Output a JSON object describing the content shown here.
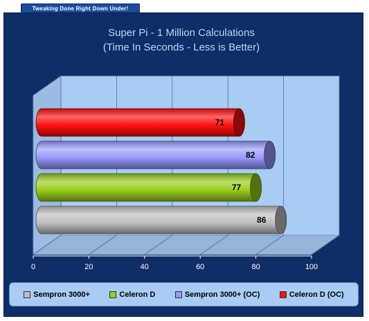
{
  "banner": {
    "text": "Tweaking Done Right Down Under!"
  },
  "chart_data": {
    "type": "bar",
    "orientation": "horizontal",
    "style": "3d-cylinder",
    "title": [
      "Super Pi - 1 Million Calculations",
      "(Time In Seconds - Less is Better)"
    ],
    "xlabel": "",
    "ylabel": "",
    "xlim": [
      0,
      100
    ],
    "ticks": [
      "0",
      "20",
      "40",
      "60",
      "80",
      "100"
    ],
    "grid": true,
    "legend_position": "bottom",
    "series": [
      {
        "name": "Sempron 3000+",
        "value": 86,
        "label": "86",
        "color": "#c0c0c0"
      },
      {
        "name": "Celeron D",
        "value": 77,
        "label": "77",
        "color": "#9acd1a"
      },
      {
        "name": "Sempron 3000+ (OC)",
        "value": 82,
        "label": "82",
        "color": "#9999ff"
      },
      {
        "name": "Celeron D (OC)",
        "value": 71,
        "label": "71",
        "color": "#ff1010"
      }
    ],
    "colors": {
      "background": "#0d2e66",
      "plot_area": "#a9ccf4",
      "title": "#b9d6ff"
    }
  }
}
